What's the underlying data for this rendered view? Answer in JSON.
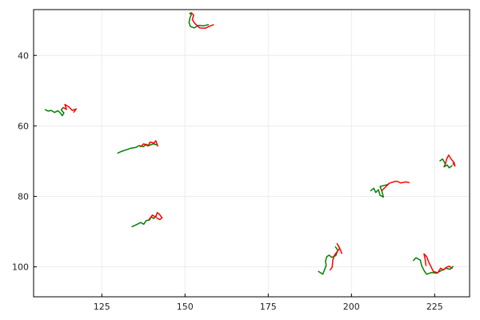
{
  "chart_data": {
    "type": "line",
    "title": "",
    "xlabel": "",
    "ylabel": "",
    "xlim": [
      104.5,
      235.5
    ],
    "ylim": [
      27,
      108.5
    ],
    "y_inverted": true,
    "grid": true,
    "legend": "none",
    "x_ticks": [
      125,
      150,
      175,
      200,
      225
    ],
    "y_ticks": [
      40,
      60,
      80,
      100
    ],
    "colors": {
      "green": "#008000",
      "red": "#ff0000",
      "frame": "#000000",
      "grid": "#ececec"
    },
    "series": [
      {
        "color": "green",
        "points": [
          [
            157,
            31.3
          ],
          [
            155.5,
            31.6
          ],
          [
            154,
            31.5
          ],
          [
            152.8,
            32.2
          ],
          [
            151.6,
            31.8
          ],
          [
            151.2,
            30.6
          ],
          [
            151.5,
            29.3
          ],
          [
            151.9,
            28.4
          ],
          [
            151.4,
            28.1
          ],
          [
            151.9,
            27.9
          ]
        ]
      },
      {
        "color": "red",
        "points": [
          [
            151.9,
            27.9
          ],
          [
            152.6,
            28.6
          ],
          [
            152.2,
            29.8
          ],
          [
            152.9,
            30.9
          ],
          [
            154.4,
            32.2
          ],
          [
            156.1,
            32.3
          ],
          [
            157.2,
            31.8
          ],
          [
            158.5,
            31.3
          ]
        ]
      },
      {
        "color": "green",
        "points": [
          [
            108,
            55.4
          ],
          [
            108.9,
            55.8
          ],
          [
            109.8,
            55.6
          ],
          [
            110.8,
            56.2
          ],
          [
            111.8,
            55.7
          ],
          [
            112.6,
            56.4
          ],
          [
            113.1,
            57.1
          ],
          [
            113.6,
            56.3
          ],
          [
            112.8,
            55.5
          ],
          [
            113.4,
            54.8
          ]
        ]
      },
      {
        "color": "red",
        "points": [
          [
            113.4,
            54.8
          ],
          [
            114.4,
            55.3
          ],
          [
            113.9,
            53.9
          ],
          [
            115.1,
            54.6
          ],
          [
            116.1,
            55.6
          ],
          [
            117.3,
            55.2
          ],
          [
            116.6,
            56.1
          ]
        ]
      },
      {
        "color": "green",
        "points": [
          [
            129.8,
            67.7
          ],
          [
            131,
            67.2
          ],
          [
            132.3,
            66.8
          ],
          [
            133.9,
            66.3
          ],
          [
            135.3,
            66.1
          ],
          [
            136.2,
            65.6
          ],
          [
            137.5,
            65.9
          ],
          [
            138.3,
            65.2
          ],
          [
            139.1,
            65.6
          ],
          [
            140.4,
            65.1
          ],
          [
            141.6,
            65.4
          ]
        ]
      },
      {
        "color": "red",
        "points": [
          [
            136.6,
            65.9
          ],
          [
            137.6,
            65.1
          ],
          [
            138.9,
            65.7
          ],
          [
            139.5,
            64.6
          ],
          [
            140.7,
            64.9
          ],
          [
            141.2,
            64.2
          ],
          [
            141.8,
            65.7
          ]
        ]
      },
      {
        "color": "green",
        "points": [
          [
            134.1,
            88.6
          ],
          [
            135.3,
            88.1
          ],
          [
            136.7,
            87.4
          ],
          [
            137.6,
            87.9
          ],
          [
            138.3,
            86.9
          ],
          [
            139.3,
            86.7
          ],
          [
            139.9,
            85.8
          ],
          [
            140.6,
            86.3
          ],
          [
            141.4,
            85.6
          ]
        ]
      },
      {
        "color": "red",
        "points": [
          [
            139.1,
            86.7
          ],
          [
            140.2,
            85.3
          ],
          [
            141.1,
            85.9
          ],
          [
            141.7,
            84.6
          ],
          [
            142.3,
            85.1
          ],
          [
            143.1,
            86.1
          ],
          [
            142.4,
            86.6
          ],
          [
            141.5,
            86.1
          ]
        ]
      },
      {
        "color": "green",
        "points": [
          [
            190.1,
            101.3
          ],
          [
            191.4,
            102.1
          ],
          [
            191.8,
            101.1
          ],
          [
            192.4,
            99.6
          ],
          [
            192.2,
            98.4
          ],
          [
            192.6,
            97.1
          ],
          [
            193.3,
            96.7
          ],
          [
            194.1,
            97.3
          ],
          [
            195.3,
            96.8
          ],
          [
            195.9,
            95.3
          ],
          [
            195.2,
            94.3
          ]
        ]
      },
      {
        "color": "red",
        "points": [
          [
            193.6,
            100.9
          ],
          [
            194.2,
            100.1
          ],
          [
            194.4,
            98.1
          ],
          [
            194.9,
            96.7
          ],
          [
            195.8,
            95.6
          ],
          [
            196.5,
            94.7
          ],
          [
            195.7,
            93.4
          ],
          [
            196.7,
            95.2
          ],
          [
            197.1,
            96.2
          ]
        ]
      },
      {
        "color": "green",
        "points": [
          [
            205.8,
            78.4
          ],
          [
            206.7,
            77.7
          ],
          [
            207.3,
            78.9
          ],
          [
            208.1,
            78.1
          ],
          [
            208.6,
            79.7
          ],
          [
            209.6,
            80.2
          ],
          [
            209.2,
            78.7
          ],
          [
            208.6,
            77.2
          ],
          [
            209.8,
            76.9
          ],
          [
            211.1,
            76.6
          ]
        ]
      },
      {
        "color": "red",
        "points": [
          [
            209.1,
            78.4
          ],
          [
            210.2,
            77.4
          ],
          [
            211.3,
            76.3
          ],
          [
            212.6,
            75.9
          ],
          [
            213.6,
            75.7
          ],
          [
            214.8,
            76.2
          ],
          [
            216.4,
            75.9
          ],
          [
            217.3,
            76.1
          ]
        ]
      },
      {
        "color": "green",
        "points": [
          [
            226.6,
            69.9
          ],
          [
            227.4,
            69.4
          ],
          [
            228.2,
            70.8
          ],
          [
            227.8,
            71.6
          ],
          [
            228.8,
            71.1
          ],
          [
            229.4,
            71.9
          ],
          [
            230.2,
            71.3
          ]
        ]
      },
      {
        "color": "red",
        "points": [
          [
            228.2,
            70.9
          ],
          [
            228.6,
            69.4
          ],
          [
            229.2,
            68.3
          ],
          [
            230.1,
            69.6
          ],
          [
            230.8,
            70.3
          ],
          [
            231.1,
            71.4
          ],
          [
            230.5,
            70.6
          ]
        ]
      },
      {
        "color": "green",
        "points": [
          [
            218.6,
            98.2
          ],
          [
            219.4,
            97.4
          ],
          [
            220.7,
            98.1
          ],
          [
            221.1,
            99.7
          ],
          [
            221.9,
            101.2
          ],
          [
            222.6,
            102.1
          ],
          [
            224.1,
            101.6
          ],
          [
            225.6,
            101.8
          ],
          [
            226.9,
            101.1
          ],
          [
            228.4,
            100.4
          ],
          [
            229.6,
            100.7
          ],
          [
            230.5,
            99.9
          ]
        ]
      },
      {
        "color": "red",
        "points": [
          [
            222.4,
            99.6
          ],
          [
            222.1,
            97.7
          ],
          [
            221.8,
            96.3
          ],
          [
            222.6,
            97.1
          ],
          [
            223.2,
            98.6
          ],
          [
            224.6,
            101.3
          ],
          [
            225.9,
            101.7
          ],
          [
            226.8,
            100.4
          ],
          [
            227.6,
            100.9
          ],
          [
            228.6,
            100.1
          ],
          [
            229.4,
            99.8
          ],
          [
            230.2,
            100.4
          ]
        ]
      }
    ]
  }
}
